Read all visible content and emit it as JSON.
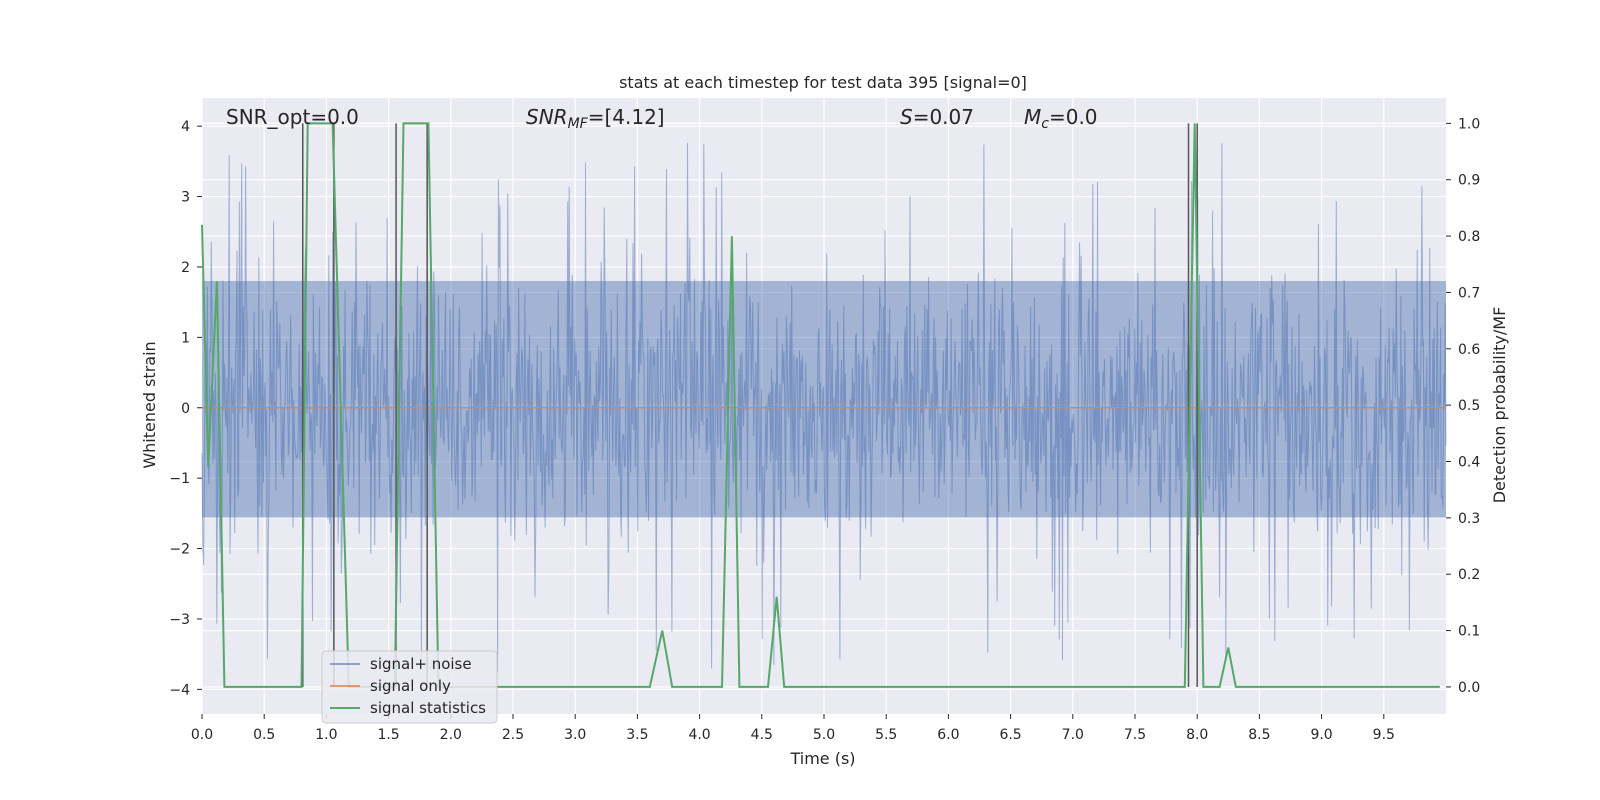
{
  "chart_data": {
    "type": "line",
    "title": "stats at each timestep for test data 395 [signal=0]",
    "xlabel": "Time (s)",
    "ylabel_left": "Whitened strain",
    "ylabel_right": "Detection probability/MF",
    "xlim": [
      0.0,
      10.0
    ],
    "ylim_left": [
      -4.35,
      4.4
    ],
    "ylim_right": [
      -0.048,
      1.045
    ],
    "x_ticks": [
      "0.0",
      "0.5",
      "1.0",
      "1.5",
      "2.0",
      "2.5",
      "3.0",
      "3.5",
      "4.0",
      "4.5",
      "5.0",
      "5.5",
      "6.0",
      "6.5",
      "7.0",
      "7.5",
      "8.0",
      "8.5",
      "9.0",
      "9.5"
    ],
    "y_ticks_left": [
      "−4",
      "−3",
      "−2",
      "−1",
      "0",
      "1",
      "2",
      "3",
      "4"
    ],
    "y_ticks_right": [
      "0.0",
      "0.1",
      "0.2",
      "0.3",
      "0.4",
      "0.5",
      "0.6",
      "0.7",
      "0.8",
      "0.9",
      "1.0"
    ],
    "grid": true,
    "background": "#eaeaf2",
    "annotations": [
      {
        "text": "SNR_opt=0.0",
        "x": 0.19
      },
      {
        "text": "=[4.12]",
        "prefix": "SNR",
        "sub": "MF",
        "x": 2.6
      },
      {
        "text": "=0.07",
        "prefix": "S",
        "x": 5.6
      },
      {
        "text": "=0.0",
        "prefix": "M",
        "sub": "c",
        "x": 6.6
      }
    ],
    "legend": {
      "placement": "lower-left",
      "entries": [
        "signal+ noise",
        "signal only",
        "signal statistics"
      ]
    },
    "series": [
      {
        "name": "signal+ noise",
        "axis": "left",
        "color": "#4c72b0",
        "opacity": 0.5,
        "style": "dense-noise",
        "noise_envelope": {
          "typical_min": -2.0,
          "typical_max": 2.5,
          "peak_max": 3.8,
          "peak_min": -3.95
        }
      },
      {
        "name": "signal only",
        "axis": "left",
        "color": "#dd8452",
        "x": [
          0.0,
          10.0
        ],
        "values": [
          0.0,
          0.0
        ]
      },
      {
        "name": "signal statistics",
        "axis": "right",
        "color": "#55a868",
        "x": [
          0.0,
          0.05,
          0.12,
          0.18,
          0.8,
          0.85,
          1.05,
          1.18,
          1.55,
          1.62,
          1.82,
          1.9,
          2.2,
          3.6,
          3.7,
          3.78,
          4.18,
          4.26,
          4.32,
          4.55,
          4.62,
          4.68,
          5.5,
          7.9,
          7.98,
          8.05,
          8.18,
          8.25,
          8.31,
          9.95
        ],
        "values": [
          0.82,
          0.39,
          0.72,
          0.0,
          0.0,
          1.0,
          1.0,
          0.0,
          0.0,
          1.0,
          1.0,
          0.0,
          0.0,
          0.0,
          0.1,
          0.0,
          0.0,
          0.8,
          0.0,
          0.0,
          0.16,
          0.0,
          0.0,
          0.0,
          1.0,
          0.0,
          0.0,
          0.07,
          0.0,
          0.0
        ]
      }
    ],
    "vertical_lines": {
      "color": "#555555",
      "x": [
        0.81,
        1.06,
        1.56,
        1.81,
        7.93,
        8.0
      ],
      "top_value": 1.0
    }
  }
}
